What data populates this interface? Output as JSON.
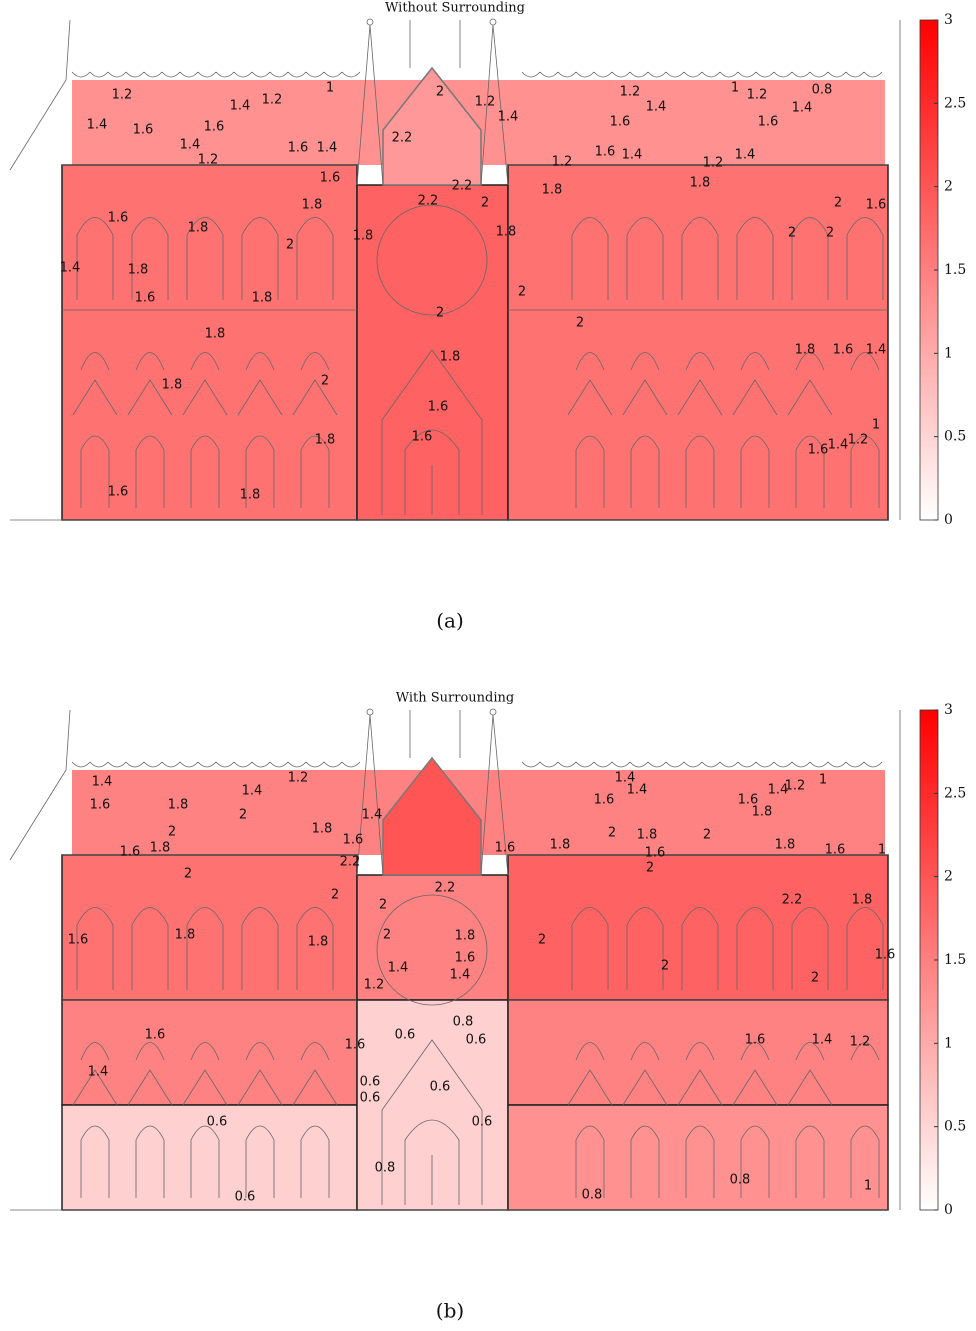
{
  "chart_data": [
    {
      "type": "contour",
      "title": "Without Surrounding",
      "caption": "(a)",
      "clim": [
        0,
        3
      ],
      "cticks": [
        0,
        0.5,
        1,
        1.5,
        2,
        2.5,
        3
      ],
      "colors": [
        "#ffffff",
        "#ff0000"
      ],
      "contour_labels": [
        1,
        1.2,
        1.2,
        1.4,
        1.4,
        1.6,
        1.6,
        1.4,
        1.2,
        1.6,
        1.4,
        1.6,
        2,
        2.2,
        1.2,
        1.4,
        1.2,
        1,
        0.8,
        1.2,
        1.4,
        1.4,
        1.6,
        1.6,
        1.6,
        1.4,
        1.2,
        1.2,
        1.4,
        1.8,
        1.8,
        2.2,
        2.2,
        2,
        1.8,
        1.6,
        1.8,
        2,
        1.8,
        1.8,
        1.4,
        1.8,
        1.6,
        1.8,
        2,
        2,
        2,
        1.8,
        1.8,
        1.8,
        1.6,
        1.4,
        1.8,
        2,
        1.6,
        1.6,
        1.8,
        1.6,
        1.4,
        1.2,
        1,
        1.6,
        1.8,
        2,
        2,
        2,
        1.6
      ]
    },
    {
      "type": "contour",
      "title": "With Surrounding",
      "caption": "(b)",
      "clim": [
        0,
        3
      ],
      "cticks": [
        0,
        0.5,
        1,
        1.5,
        2,
        2.5,
        3
      ],
      "colors": [
        "#ffffff",
        "#ff0000"
      ],
      "contour_labels": [
        1.4,
        1.2,
        1.4,
        1.6,
        1.8,
        2,
        2,
        1.8,
        1.6,
        1.4,
        1.6,
        1.8,
        2.2,
        2,
        2,
        1.6,
        1.8,
        1.8,
        2,
        2.2,
        2,
        1.8,
        1.6,
        1.4,
        1.2,
        1.4,
        2,
        2,
        2,
        2.2,
        1.8,
        1.6,
        1.4,
        1.4,
        1.4,
        1.2,
        1,
        1.6,
        1.6,
        1.8,
        2,
        1.8,
        2,
        1.8,
        1.6,
        1.6,
        1.8,
        1.6,
        2,
        1,
        0.8,
        0.6,
        0.6,
        1.6,
        1.6,
        1.6,
        1.4,
        1.2,
        1.4,
        0.6,
        0.6,
        0.6,
        0.6,
        0.6,
        0.8,
        0.6,
        0.8,
        0.8,
        1
      ]
    }
  ]
}
